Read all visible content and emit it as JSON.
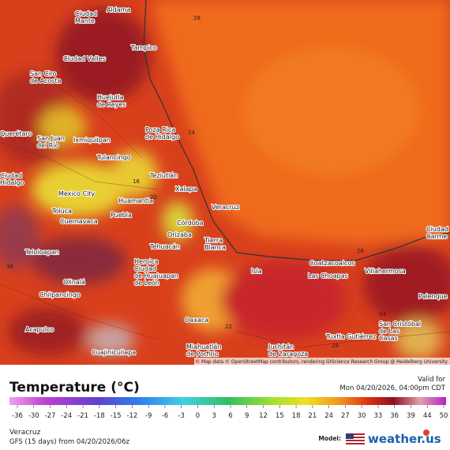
{
  "map": {
    "cities": [
      {
        "lines": [
          "Aldama"
        ]
      },
      {
        "lines": [
          "Ciudad",
          "Mante"
        ]
      },
      {
        "lines": [
          "Tampico"
        ]
      },
      {
        "lines": [
          "Ciudad Valles"
        ]
      },
      {
        "lines": [
          "San Ciro",
          "de Acosta"
        ]
      },
      {
        "lines": [
          "Huejutla",
          "de Reyes"
        ]
      },
      {
        "lines": [
          "Poza Rica",
          "de Hidalgo"
        ]
      },
      {
        "lines": [
          "Querétaro"
        ]
      },
      {
        "lines": [
          "San Juan",
          "del Río"
        ]
      },
      {
        "lines": [
          "Ixmiquilpan"
        ]
      },
      {
        "lines": [
          "Tulancingo"
        ]
      },
      {
        "lines": [
          "Teziutlán"
        ]
      },
      {
        "lines": [
          "Xalapa"
        ]
      },
      {
        "lines": [
          "Ciudad",
          "Hidalgo"
        ]
      },
      {
        "lines": [
          "Mexico City"
        ]
      },
      {
        "lines": [
          "Huamantla"
        ]
      },
      {
        "lines": [
          "Veracruz"
        ]
      },
      {
        "lines": [
          "Toluca"
        ]
      },
      {
        "lines": [
          "Puebla"
        ]
      },
      {
        "lines": [
          "Córdoba"
        ]
      },
      {
        "lines": [
          "Cuernavaca"
        ]
      },
      {
        "lines": [
          "Orizaba"
        ]
      },
      {
        "lines": [
          "Tierra",
          "Blanca"
        ]
      },
      {
        "lines": [
          "Teloloapan"
        ]
      },
      {
        "lines": [
          "Tehuacán"
        ]
      },
      {
        "lines": [
          "Heroica",
          "Ciudad",
          "de Huajuapan",
          "de León"
        ]
      },
      {
        "lines": [
          "Coatzacoalcos"
        ]
      },
      {
        "lines": [
          "Ciudad",
          "Carme"
        ]
      },
      {
        "lines": [
          "Isla"
        ]
      },
      {
        "lines": [
          "Las Choapas"
        ]
      },
      {
        "lines": [
          "Villahermosa"
        ]
      },
      {
        "lines": [
          "Olinalá"
        ]
      },
      {
        "lines": [
          "Chilpancingo"
        ]
      },
      {
        "lines": [
          "Palenque"
        ]
      },
      {
        "lines": [
          "Oaxaca"
        ]
      },
      {
        "lines": [
          "San Cristóbal",
          "de Las",
          "Casas"
        ]
      },
      {
        "lines": [
          "Acapulco"
        ]
      },
      {
        "lines": [
          "Tuxtla Gutiérrez"
        ]
      },
      {
        "lines": [
          "Miahuatlán",
          "de Porfirio"
        ]
      },
      {
        "lines": [
          "Juchitán",
          "de Zaragoza"
        ]
      },
      {
        "lines": [
          "Cuajinicuilapa"
        ]
      }
    ],
    "contour_labels": [
      "24",
      "28",
      "16",
      "20",
      "36",
      "22",
      "28",
      "24",
      "28"
    ],
    "attribution": "© Map data © OpenStreetMap contributors, rendering GIScience Research Group @ Heidelberg University"
  },
  "legend": {
    "title": "Temperature (°C)",
    "valid_label": "Valid for",
    "valid_time": "Mon 04/20/2026, 04:00pm CDT",
    "ticks": [
      -36,
      -30,
      -27,
      -24,
      -21,
      -18,
      -15,
      -12,
      -9,
      -6,
      -3,
      0,
      3,
      6,
      9,
      12,
      15,
      18,
      21,
      24,
      27,
      30,
      33,
      36,
      39,
      44,
      50
    ]
  },
  "footer": {
    "location": "Veracruz",
    "run": "GFS (15 days) from 04/20/2026/06z",
    "model_label": "Model:",
    "brand": "weather.us"
  }
}
